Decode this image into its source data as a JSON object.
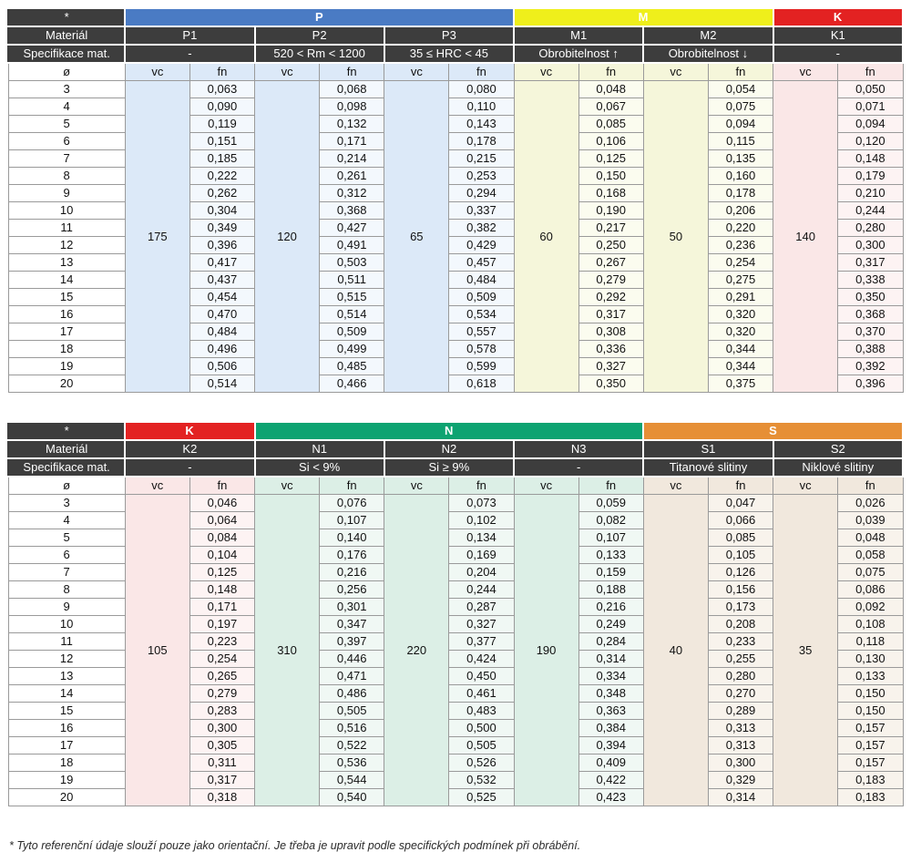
{
  "labels": {
    "star": "*",
    "material": "Materiál",
    "spec": "Specifikace mat.",
    "diameter": "ø",
    "vc": "vc",
    "fn": "fn"
  },
  "footnote": "* Tyto referenční údaje slouží pouze jako orientační. Je třeba je upravit podle specifických podmínek při obrábění.",
  "diameters": [
    "3",
    "4",
    "5",
    "6",
    "7",
    "8",
    "9",
    "10",
    "11",
    "12",
    "13",
    "14",
    "15",
    "16",
    "17",
    "18",
    "19",
    "20"
  ],
  "colors": {
    "header_dark": "#3d3d3d",
    "band_P": "#4a7bc4",
    "band_M": "#efef1b",
    "band_K": "#e32222",
    "band_N": "#0da371",
    "band_S": "#e68f36"
  },
  "tables": [
    {
      "name": "table-1",
      "groups": [
        {
          "letter": "P",
          "band": "#4a7bc4",
          "band_text": "#ffffff",
          "tint": "#dce9f8",
          "tint_light": "#f3f8fd",
          "subs": [
            {
              "label": "P1",
              "spec": "-",
              "vc": "175",
              "fn": [
                "0,063",
                "0,090",
                "0,119",
                "0,151",
                "0,185",
                "0,222",
                "0,262",
                "0,304",
                "0,349",
                "0,396",
                "0,417",
                "0,437",
                "0,454",
                "0,470",
                "0,484",
                "0,496",
                "0,506",
                "0,514"
              ]
            },
            {
              "label": "P2",
              "spec": "520 < Rm < 1200",
              "vc": "120",
              "fn": [
                "0,068",
                "0,098",
                "0,132",
                "0,171",
                "0,214",
                "0,261",
                "0,312",
                "0,368",
                "0,427",
                "0,491",
                "0,503",
                "0,511",
                "0,515",
                "0,514",
                "0,509",
                "0,499",
                "0,485",
                "0,466"
              ]
            },
            {
              "label": "P3",
              "spec": "35 ≤ HRC < 45",
              "vc": "65",
              "fn": [
                "0,080",
                "0,110",
                "0,143",
                "0,178",
                "0,215",
                "0,253",
                "0,294",
                "0,337",
                "0,382",
                "0,429",
                "0,457",
                "0,484",
                "0,509",
                "0,534",
                "0,557",
                "0,578",
                "0,599",
                "0,618"
              ]
            }
          ]
        },
        {
          "letter": "M",
          "band": "#efef1b",
          "band_text": "#ffffff",
          "tint": "#f5f6da",
          "tint_light": "#fbfcef",
          "subs": [
            {
              "label": "M1",
              "spec": "Obrobitelnost ↑",
              "vc": "60",
              "fn": [
                "0,048",
                "0,067",
                "0,085",
                "0,106",
                "0,125",
                "0,150",
                "0,168",
                "0,190",
                "0,217",
                "0,250",
                "0,267",
                "0,279",
                "0,292",
                "0,317",
                "0,308",
                "0,336",
                "0,327",
                "0,350"
              ]
            },
            {
              "label": "M2",
              "spec": "Obrobitelnost ↓",
              "vc": "50",
              "fn": [
                "0,054",
                "0,075",
                "0,094",
                "0,115",
                "0,135",
                "0,160",
                "0,178",
                "0,206",
                "0,220",
                "0,236",
                "0,254",
                "0,275",
                "0,291",
                "0,320",
                "0,320",
                "0,344",
                "0,344",
                "0,375"
              ]
            }
          ]
        },
        {
          "letter": "K",
          "band": "#e32222",
          "band_text": "#ffffff",
          "tint": "#fae7e7",
          "tint_light": "#fdf3f3",
          "subs": [
            {
              "label": "K1",
              "spec": "-",
              "vc": "140",
              "fn": [
                "0,050",
                "0,071",
                "0,094",
                "0,120",
                "0,148",
                "0,179",
                "0,210",
                "0,244",
                "0,280",
                "0,300",
                "0,317",
                "0,338",
                "0,350",
                "0,368",
                "0,370",
                "0,388",
                "0,392",
                "0,396"
              ]
            }
          ]
        }
      ]
    },
    {
      "name": "table-2",
      "groups": [
        {
          "letter": "K",
          "band": "#e32222",
          "band_text": "#ffffff",
          "tint": "#fae7e7",
          "tint_light": "#fdf3f3",
          "subs": [
            {
              "label": "K2",
              "spec": "-",
              "vc": "105",
              "fn": [
                "0,046",
                "0,064",
                "0,084",
                "0,104",
                "0,125",
                "0,148",
                "0,171",
                "0,197",
                "0,223",
                "0,254",
                "0,265",
                "0,279",
                "0,283",
                "0,300",
                "0,305",
                "0,311",
                "0,317",
                "0,318"
              ]
            }
          ]
        },
        {
          "letter": "N",
          "band": "#0da371",
          "band_text": "#ffffff",
          "tint": "#dcefe6",
          "tint_light": "#f0f8f4",
          "subs": [
            {
              "label": "N1",
              "spec": "Si < 9%",
              "vc": "310",
              "fn": [
                "0,076",
                "0,107",
                "0,140",
                "0,176",
                "0,216",
                "0,256",
                "0,301",
                "0,347",
                "0,397",
                "0,446",
                "0,471",
                "0,486",
                "0,505",
                "0,516",
                "0,522",
                "0,536",
                "0,544",
                "0,540"
              ]
            },
            {
              "label": "N2",
              "spec": "Si ≥ 9%",
              "vc": "220",
              "fn": [
                "0,073",
                "0,102",
                "0,134",
                "0,169",
                "0,204",
                "0,244",
                "0,287",
                "0,327",
                "0,377",
                "0,424",
                "0,450",
                "0,461",
                "0,483",
                "0,500",
                "0,505",
                "0,526",
                "0,532",
                "0,525"
              ]
            },
            {
              "label": "N3",
              "spec": "-",
              "vc": "190",
              "fn": [
                "0,059",
                "0,082",
                "0,107",
                "0,133",
                "0,159",
                "0,188",
                "0,216",
                "0,249",
                "0,284",
                "0,314",
                "0,334",
                "0,348",
                "0,363",
                "0,384",
                "0,394",
                "0,409",
                "0,422",
                "0,423"
              ]
            }
          ]
        },
        {
          "letter": "S",
          "band": "#e68f36",
          "band_text": "#ffffff",
          "tint": "#f1e8dd",
          "tint_light": "#f8f3ec",
          "subs": [
            {
              "label": "S1",
              "spec": "Titanové slitiny",
              "vc": "40",
              "fn": [
                "0,047",
                "0,066",
                "0,085",
                "0,105",
                "0,126",
                "0,156",
                "0,173",
                "0,208",
                "0,233",
                "0,255",
                "0,280",
                "0,270",
                "0,289",
                "0,313",
                "0,313",
                "0,300",
                "0,329",
                "0,314"
              ]
            },
            {
              "label": "S2",
              "spec": "Niklové slitiny",
              "vc": "35",
              "fn": [
                "0,026",
                "0,039",
                "0,048",
                "0,058",
                "0,075",
                "0,086",
                "0,092",
                "0,108",
                "0,118",
                "0,130",
                "0,133",
                "0,150",
                "0,150",
                "0,157",
                "0,157",
                "0,157",
                "0,183",
                "0,183"
              ]
            }
          ]
        }
      ]
    }
  ]
}
